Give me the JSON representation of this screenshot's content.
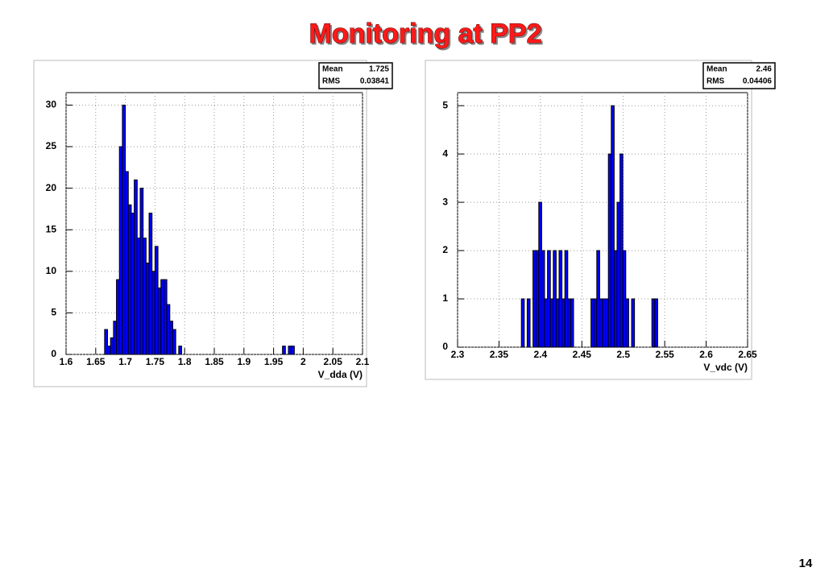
{
  "title": "Monitoring at PP2",
  "page_number": 14,
  "chart_data": [
    {
      "type": "histogram",
      "xlabel": "V_dda (V)",
      "color": "#0000ff",
      "grid": true,
      "stats": [
        {
          "label": "Mean",
          "value": 1.725
        },
        {
          "label": "RMS",
          "value": 0.03841
        }
      ],
      "bins": [
        1.665,
        1.67,
        1.675,
        1.68,
        1.685,
        1.69,
        1.695,
        1.7,
        1.705,
        1.71,
        1.715,
        1.72,
        1.725,
        1.73,
        1.735,
        1.74,
        1.745,
        1.75,
        1.755,
        1.76,
        1.765,
        1.77,
        1.775,
        1.78,
        1.785,
        1.79,
        1.795,
        1.8,
        1.805,
        1.81,
        1.815,
        1.82,
        1.825,
        1.83,
        1.835,
        1.84,
        1.845,
        1.85,
        1.855,
        1.86,
        1.865,
        1.87,
        1.875,
        1.88,
        1.885,
        1.89,
        1.895,
        1.9,
        1.905,
        1.91,
        1.915,
        1.92,
        1.925,
        1.93,
        1.935,
        1.94,
        1.945,
        1.95,
        1.955,
        1.96,
        1.965,
        1.97,
        1.975,
        1.98,
        1.985
      ],
      "values": [
        3,
        1,
        2,
        4,
        9,
        25,
        30,
        22,
        18,
        17,
        21,
        14,
        20,
        14,
        11,
        17,
        10,
        13,
        8,
        9,
        9,
        6,
        4,
        3,
        0,
        1,
        0,
        0,
        0,
        0,
        0,
        0,
        0,
        0,
        0,
        0,
        0,
        0,
        0,
        0,
        0,
        0,
        0,
        0,
        0,
        0,
        0,
        0,
        0,
        0,
        0,
        0,
        0,
        0,
        0,
        0,
        0,
        0,
        0,
        0,
        1,
        0,
        1,
        1
      ],
      "xlim": [
        1.6,
        2.1
      ],
      "xticks": [
        1.6,
        1.65,
        1.7,
        1.75,
        1.8,
        1.85,
        1.9,
        1.95,
        2,
        2.05,
        2.1
      ],
      "ylim": [
        0,
        31.5
      ],
      "yticks": [
        0,
        5,
        10,
        15,
        20,
        25,
        30
      ]
    },
    {
      "type": "histogram",
      "xlabel": "V_vdc (V)",
      "color": "#0000ff",
      "grid": true,
      "stats": [
        {
          "label": "Mean",
          "value": 2.46
        },
        {
          "label": "RMS",
          "value": 0.04406
        }
      ],
      "bins": [
        2.377,
        2.3805,
        2.384,
        2.3875,
        2.391,
        2.3945,
        2.398,
        2.4015,
        2.405,
        2.4085,
        2.412,
        2.4155,
        2.419,
        2.4225,
        2.426,
        2.4295,
        2.433,
        2.4365,
        2.44,
        2.4435,
        2.447,
        2.4505,
        2.454,
        2.4575,
        2.461,
        2.4645,
        2.468,
        2.4715,
        2.475,
        2.4785,
        2.482,
        2.4855,
        2.489,
        2.4925,
        2.496,
        2.4995,
        2.503,
        2.5065,
        2.51,
        2.5135,
        2.517,
        2.5205,
        2.524,
        2.5275,
        2.531,
        2.5345,
        2.538,
        2.5415
      ],
      "values": [
        1,
        0,
        1,
        0,
        2,
        2,
        3,
        2,
        1,
        2,
        1,
        2,
        1,
        2,
        1,
        2,
        1,
        1,
        0,
        0,
        0,
        0,
        0,
        0,
        1,
        1,
        2,
        1,
        1,
        1,
        4,
        5,
        2,
        3,
        4,
        2,
        1,
        0,
        1,
        0,
        0,
        0,
        0,
        0,
        0,
        1,
        1
      ],
      "xlim": [
        2.3,
        2.65
      ],
      "xticks": [
        2.3,
        2.35,
        2.4,
        2.45,
        2.5,
        2.55,
        2.6,
        2.65
      ],
      "ylim": [
        0,
        5.27
      ],
      "yticks": [
        0,
        1,
        2,
        3,
        4,
        5
      ]
    }
  ]
}
